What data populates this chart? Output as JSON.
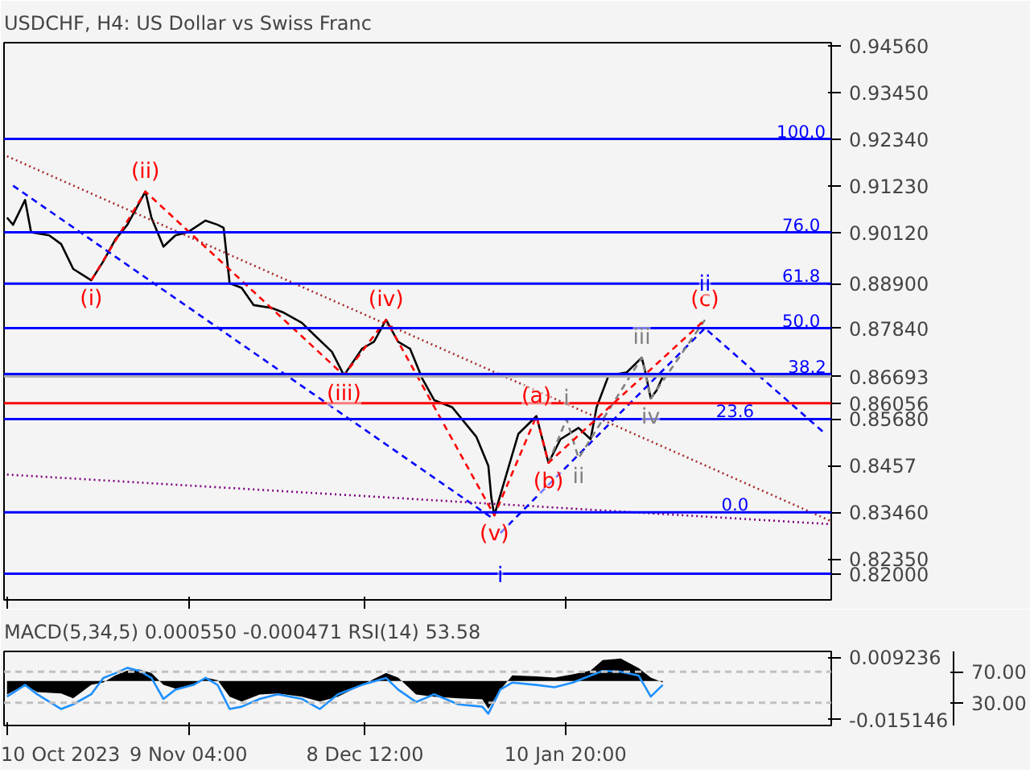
{
  "chart_data": [
    {
      "type": "line",
      "title": "USDCHF, H4:  US Dollar vs Swiss Franc",
      "xlim": [
        "2023-10-09T12:00",
        "2024-02-24"
      ],
      "xticks": [
        {
          "value": "2023-10-10T00:00",
          "label": null
        },
        {
          "value": "2023-11-09T04:00",
          "label": null
        },
        {
          "value": "2023-12-08T12:00",
          "label": null
        },
        {
          "value": "2024-01-10T20:00",
          "label": null
        }
      ],
      "tick_labels": "y",
      "ylim": [
        0.8138,
        0.9463
      ],
      "yticks": [
        {
          "value": 0.9456,
          "label": "0.94560"
        },
        {
          "value": 0.9345,
          "label": "0.93450"
        },
        {
          "value": 0.9234,
          "label": "0.92340"
        },
        {
          "value": 0.9123,
          "label": "0.91230"
        },
        {
          "value": 0.9012,
          "label": "0.90120"
        },
        {
          "value": 0.889,
          "label": "0.88900"
        },
        {
          "value": 0.8784,
          "label": "0.87840"
        },
        0.86693,
        0.86056,
        {
          "value": 0.8568,
          "label": "0.85680"
        },
        0.8457,
        {
          "value": 0.8346,
          "label": "0.83460"
        },
        {
          "value": 0.8235,
          "label": "0.82350"
        },
        {
          "value": 0.82,
          "label": "0.82000"
        }
      ],
      "grid": false,
      "series": [
        {
          "color": "#000000",
          "line_style": "solid",
          "x": [
            "2023-10-10",
            "2023-10-11",
            "2023-10-13",
            "2023-10-14",
            "2023-10-17",
            "2023-10-19",
            "2023-10-21",
            "2023-10-24",
            "2023-10-26",
            "2023-10-28",
            "2023-10-30",
            "2023-11-02",
            "2023-11-03",
            "2023-11-05",
            "2023-11-07",
            "2023-11-09",
            "2023-11-12",
            "2023-11-14",
            "2023-11-15",
            "2023-11-16",
            "2023-11-18",
            "2023-11-20",
            "2023-11-23",
            "2023-11-25",
            "2023-11-28",
            "2023-11-30",
            "2023-12-03",
            "2023-12-05",
            "2023-12-08",
            "2023-12-10",
            "2023-12-12",
            "2023-12-14",
            "2023-12-16",
            "2023-12-18",
            "2023-12-20",
            "2023-12-23",
            "2023-12-25",
            "2023-12-27",
            "2023-12-29",
            "2023-12-29T12:00",
            "2023-12-30",
            "2024-01-01",
            "2024-01-03",
            "2024-01-06",
            "2024-01-08",
            "2024-01-10",
            "2024-01-13",
            "2024-01-15",
            "2024-01-16",
            "2024-01-18",
            "2024-01-21",
            "2024-01-23T12:00",
            "2024-01-24",
            "2024-01-25",
            "2024-01-26",
            "2024-01-27"
          ],
          "values": [
            0.9047,
            0.903,
            0.9089,
            0.9012,
            0.9005,
            0.8984,
            0.8925,
            0.8898,
            0.8943,
            0.8995,
            0.903,
            0.9109,
            0.9047,
            0.8978,
            0.9005,
            0.9012,
            0.904,
            0.903,
            0.9023,
            0.8891,
            0.888,
            0.8839,
            0.8832,
            0.8821,
            0.8797,
            0.8769,
            0.8728,
            0.8672,
            0.8735,
            0.8752,
            0.8804,
            0.8752,
            0.8735,
            0.8665,
            0.8613,
            0.8596,
            0.8561,
            0.8526,
            0.8457,
            0.8381,
            0.8339,
            0.8436,
            0.8533,
            0.8575,
            0.8464,
            0.852,
            0.8547,
            0.852,
            0.8596,
            0.8672,
            0.8679,
            0.8714,
            0.8686,
            0.8617,
            0.8637,
            0.8669
          ]
        },
        {
          "color": "#0000ff",
          "line_style": "dashed",
          "x": [
            "2023-10-11",
            "2023-12-30"
          ],
          "values": [
            0.9123,
            0.8329
          ]
        },
        {
          "color": "#a52a2a",
          "line_style": "dotted",
          "x": [
            "2023-10-10",
            "2024-02-24"
          ],
          "values": [
            0.9193,
            0.8325
          ]
        },
        {
          "color": "#800080",
          "line_style": "dotted",
          "x": [
            "2023-10-10",
            "2024-02-24"
          ],
          "values": [
            0.8436,
            0.8318
          ]
        },
        {
          "color": "#0000ff",
          "line_style": "dashed",
          "x": [
            "2023-12-31",
            "2024-02-03",
            "2024-02-23"
          ],
          "values": [
            0.8297,
            0.8784,
            0.8533
          ]
        },
        {
          "color": "#808080",
          "line_style": "dashed",
          "x": [
            "2024-01-08",
            "2024-01-11",
            "2024-01-13",
            "2024-01-23T12:00",
            "2024-01-25",
            "2024-02-03"
          ],
          "values": [
            0.8464,
            0.8568,
            0.8475,
            0.8714,
            0.8617,
            0.8804
          ]
        },
        {
          "color": "#ff0000",
          "line_style": "dashed",
          "x": [
            "2023-10-24",
            "2023-11-02",
            "2023-12-05",
            "2023-12-12",
            "2023-12-30",
            "2024-01-06",
            "2024-01-08",
            "2024-02-03"
          ],
          "values": [
            0.8898,
            0.9109,
            0.8672,
            0.8804,
            0.8339,
            0.8575,
            0.8464,
            0.8804
          ]
        }
      ],
      "ref_lines": [
        {
          "axis": "y",
          "value": 0.9234,
          "color": "#0000ff"
        },
        {
          "axis": "y",
          "value": 0.9012,
          "color": "#0000ff"
        },
        {
          "axis": "y",
          "value": 0.889,
          "color": "#0000ff"
        },
        {
          "axis": "y",
          "value": 0.8784,
          "color": "#0000ff"
        },
        {
          "axis": "y",
          "value": 0.8675,
          "color": "#0000ff"
        },
        {
          "axis": "y",
          "value": 0.8568,
          "color": "#0000ff"
        },
        {
          "axis": "y",
          "value": 0.8346,
          "color": "#0000ff"
        },
        {
          "axis": "y",
          "value": 0.82,
          "color": "#0000ff"
        },
        {
          "axis": "y",
          "value": 0.86056,
          "color": "#ff0000"
        },
        {
          "axis": "y",
          "value": 0.86693,
          "color": "#b0b0b0"
        }
      ],
      "annotations": [
        {
          "text": "100.0",
          "x": "2024-02-19",
          "y": 0.9234
        },
        {
          "text": "76.0",
          "x": "2024-02-19",
          "y": 0.9012
        },
        {
          "text": "61.8",
          "x": "2024-02-19",
          "y": 0.889
        },
        {
          "text": "50.0",
          "x": "2024-02-19",
          "y": 0.8784
        },
        {
          "text": "38.2",
          "x": "2024-02-20",
          "y": 0.8675
        },
        {
          "text": "23.6",
          "x": "2024-02-08",
          "y": 0.8568
        },
        {
          "text": "0.0",
          "x": "2024-02-08",
          "y": 0.8346
        },
        {
          "text": "(i)",
          "x": "2023-10-24",
          "y": 0.8898
        },
        {
          "text": "(ii)",
          "x": "2023-11-02",
          "y": 0.9109
        },
        {
          "text": "(iii)",
          "x": "2023-12-05",
          "y": 0.8672
        },
        {
          "text": "(iv)",
          "x": "2023-12-12",
          "y": 0.8804
        },
        {
          "text": "(v)",
          "x": "2023-12-30",
          "y": 0.8339
        },
        {
          "text": "i",
          "x": "2023-12-31",
          "y": 0.8297
        },
        {
          "text": "(a)",
          "x": "2024-01-06",
          "y": 0.8575
        },
        {
          "text": "(b)",
          "x": "2024-01-08",
          "y": 0.8464
        },
        {
          "text": "(c)",
          "x": "2024-02-03",
          "y": 0.8804
        },
        {
          "text": "ii",
          "x": "2024-02-03",
          "y": 0.8784
        },
        {
          "text": "i",
          "x": "2024-01-11",
          "y": 0.8568
        },
        {
          "text": "ii",
          "x": "2024-01-13",
          "y": 0.8475
        },
        {
          "text": "iii",
          "x": "2024-01-23T12:00",
          "y": 0.8714
        },
        {
          "text": "iv",
          "x": "2024-01-25",
          "y": 0.8617
        }
      ]
    },
    {
      "type": "line",
      "title": "MACD(5,34,5) 0.000550 -0.000471 RSI(14) 53.58",
      "xlim": [
        "2023-10-09T12:00",
        "2024-02-24"
      ],
      "xticks": [
        {
          "value": "2023-10-10T00:00",
          "label": "10 Oct 2023"
        },
        {
          "value": "2023-11-09T04:00",
          "label": "9 Nov 04:00"
        },
        {
          "value": "2023-12-08T12:00",
          "label": "8 Dec 12:00"
        },
        {
          "value": "2024-01-10T20:00",
          "label": "10 Jan 20:00"
        }
      ],
      "ylim": [
        -0.0175,
        0.0116
      ],
      "yticks": [
        0.009236,
        -0.015146
      ],
      "y2lim": [
        0.8,
        96.1
      ],
      "y2ticks": [
        {
          "value": 70,
          "label": "70.00"
        },
        {
          "value": 30,
          "label": "30.00"
        }
      ],
      "grid": false,
      "x": [
        "2023-10-10",
        "2023-10-13",
        "2023-10-15",
        "2023-10-19",
        "2023-10-21",
        "2023-10-24",
        "2023-10-26",
        "2023-10-28",
        "2023-10-30",
        "2023-11-01",
        "2023-11-03",
        "2023-11-05",
        "2023-11-07",
        "2023-11-10",
        "2023-11-12",
        "2023-11-14",
        "2023-11-16",
        "2023-11-18",
        "2023-11-21",
        "2023-11-24",
        "2023-11-28",
        "2023-12-01",
        "2023-12-04",
        "2023-12-08",
        "2023-12-12",
        "2023-12-14",
        "2023-12-17",
        "2023-12-20",
        "2023-12-24",
        "2023-12-28",
        "2023-12-29",
        "2023-12-31",
        "2024-01-02",
        "2024-01-06",
        "2024-01-09",
        "2024-01-12",
        "2024-01-15",
        "2024-01-17",
        "2024-01-20",
        "2024-01-23",
        "2024-01-25",
        "2024-01-27"
      ],
      "series": [
        {
          "type": "area",
          "color": "#000000",
          "values": [
            -0.0053,
            -0.0015,
            -0.0044,
            -0.0049,
            -0.0068,
            -0.0015,
            -0.0006,
            0.0022,
            0.0041,
            0.0045,
            0.0031,
            -0.0015,
            -0.003,
            -0.0015,
            0.0013,
            0.0003,
            -0.0062,
            -0.0081,
            -0.0053,
            -0.0049,
            -0.0062,
            -0.0081,
            -0.0062,
            -0.0015,
            0.0031,
            0.0013,
            -0.0053,
            -0.0062,
            -0.0068,
            -0.0072,
            -0.0109,
            -0.0034,
            0.0022,
            0.0018,
            0.0013,
            0.0026,
            0.0041,
            0.0082,
            0.0088,
            0.005,
            0.0013,
            -0.0006
          ]
        },
        {
          "type": "line",
          "axis": "y2",
          "color": "#1e90ff",
          "values": [
            38,
            53,
            41,
            22,
            28,
            41,
            62,
            68,
            75,
            71,
            62,
            35,
            47,
            53,
            62,
            53,
            22,
            25,
            35,
            41,
            35,
            22,
            41,
            53,
            62,
            47,
            31,
            41,
            28,
            25,
            16,
            47,
            56,
            53,
            50,
            56,
            65,
            71,
            70,
            65,
            38,
            53
          ]
        }
      ],
      "ref_lines": [
        {
          "axis": "y2",
          "value": 70,
          "color": "#c0c0c0",
          "line_style": "dashed"
        },
        {
          "axis": "y2",
          "value": 30,
          "color": "#c0c0c0",
          "line_style": "dashed"
        }
      ]
    }
  ]
}
